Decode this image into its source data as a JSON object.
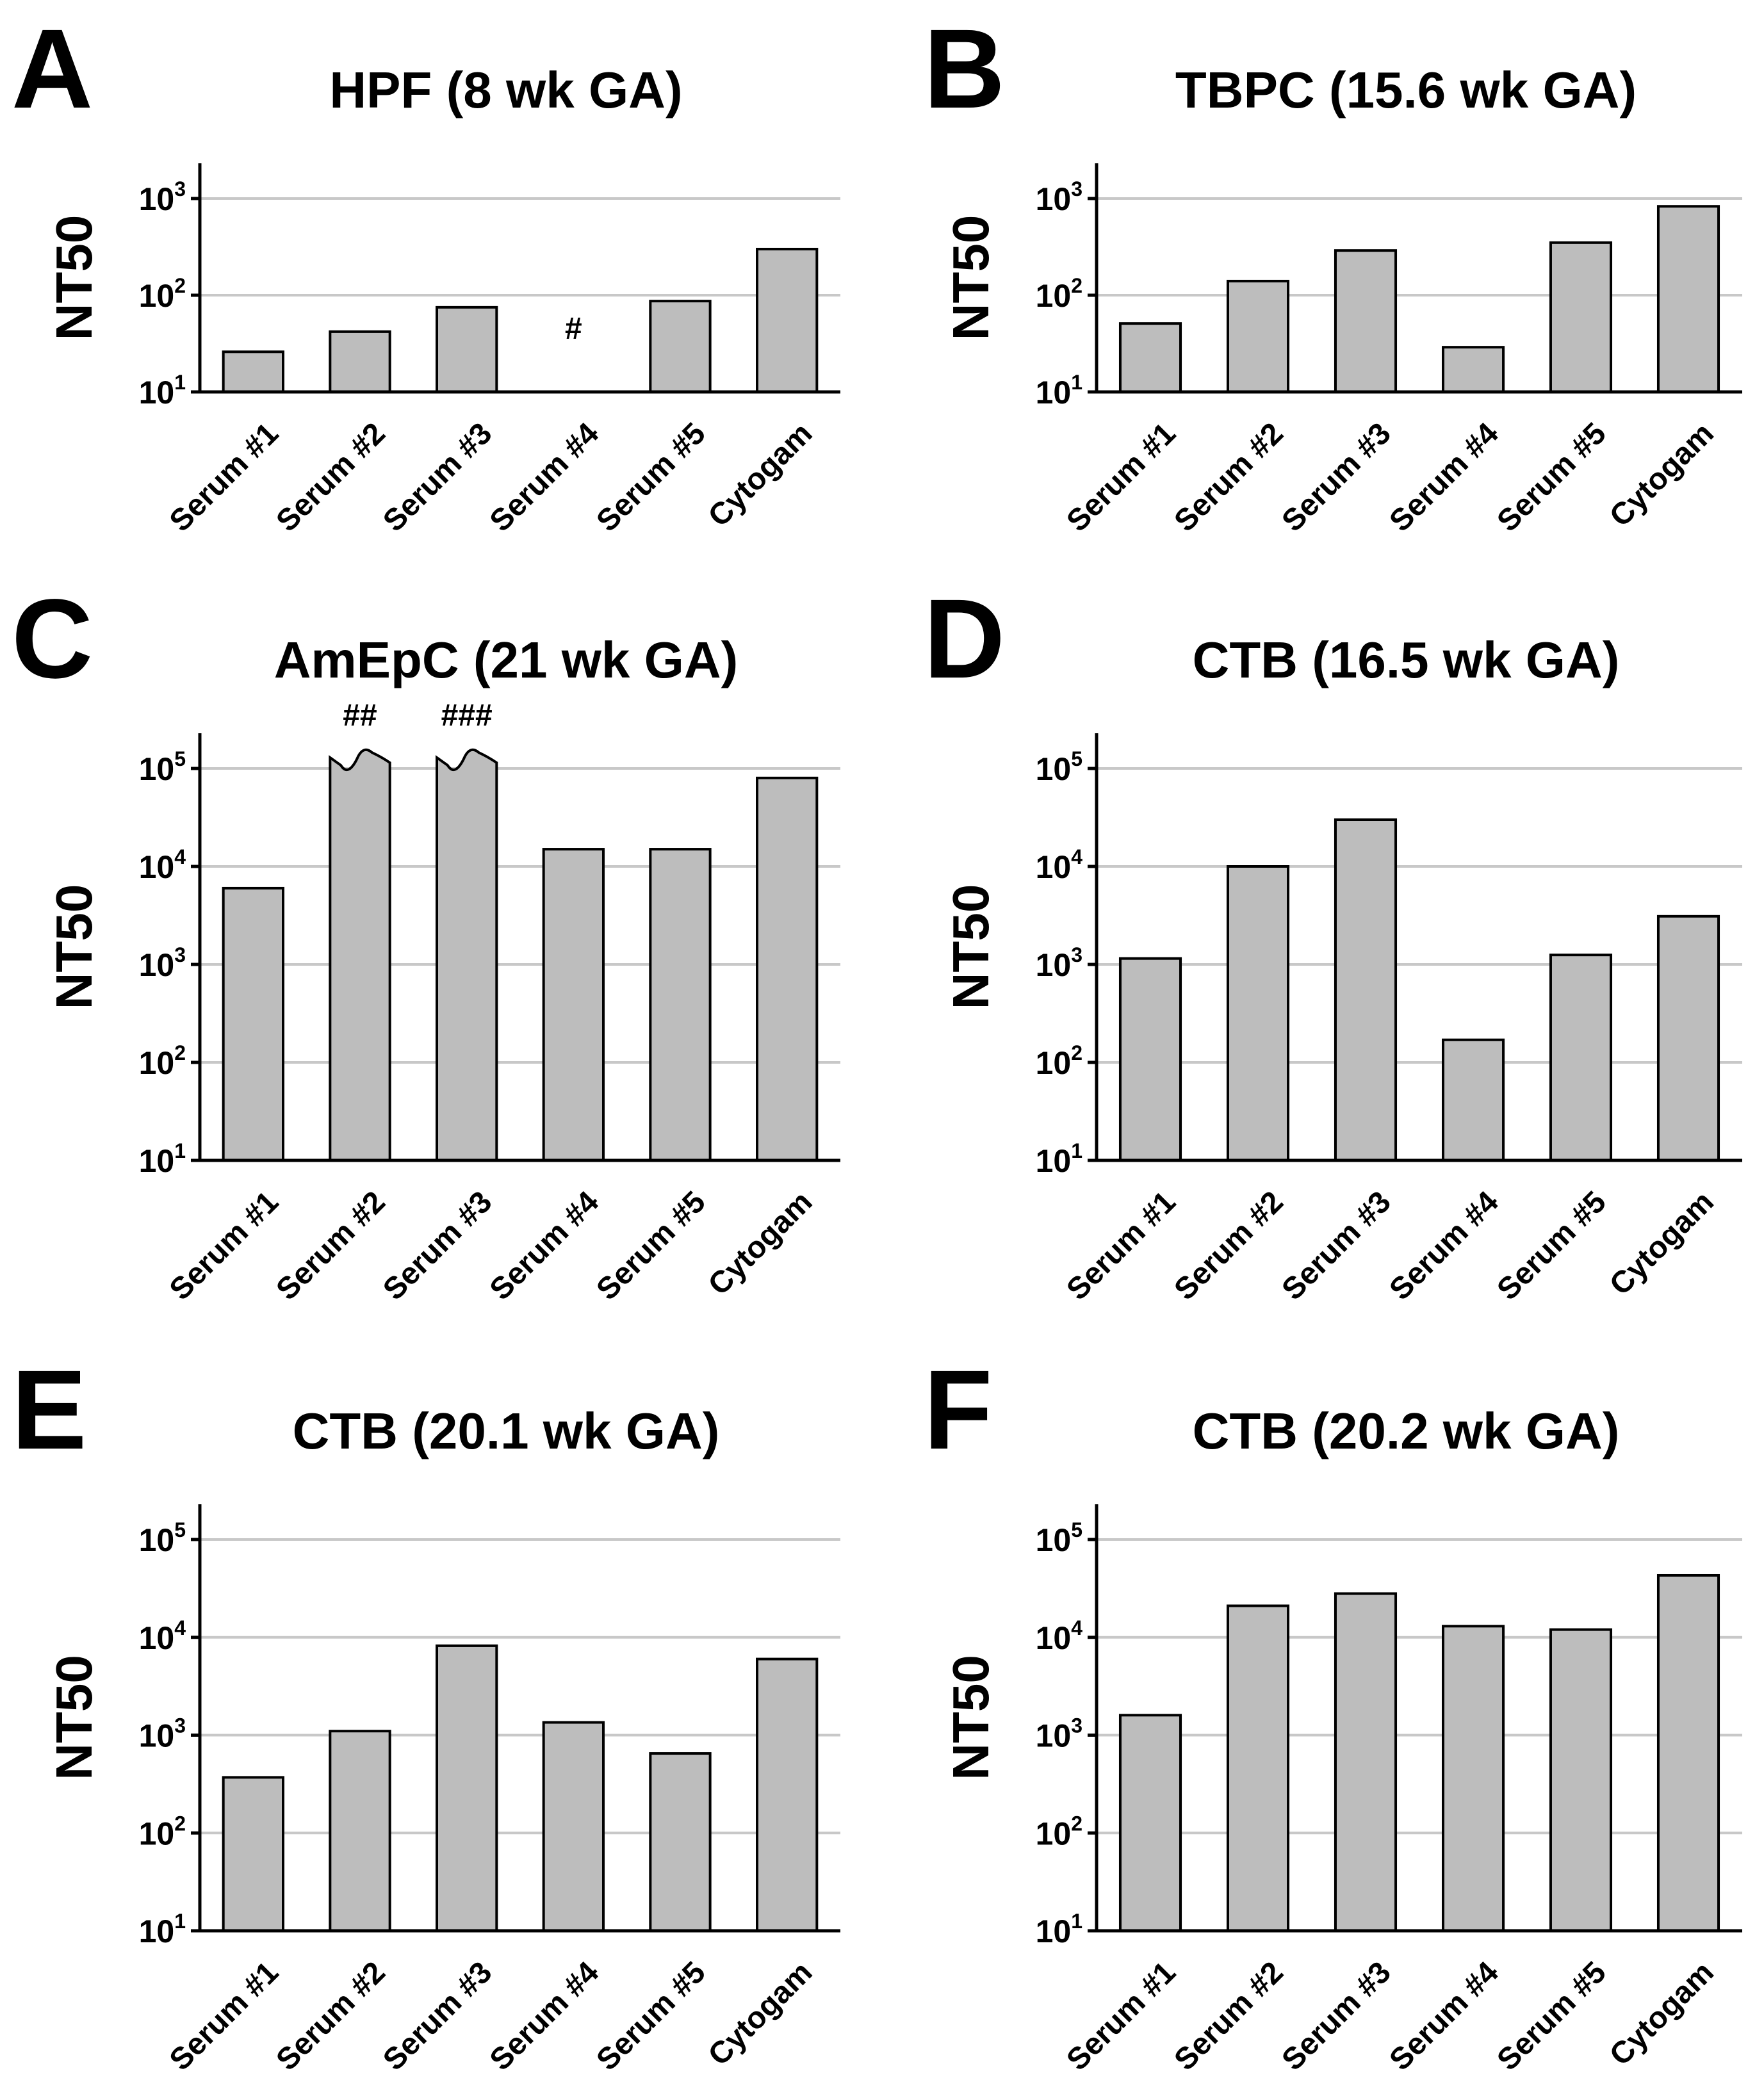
{
  "chart_data": [
    {
      "type": "bar",
      "letter": "A",
      "title": "HPF (8 wk GA)",
      "ylabel": "NT50",
      "yscale": "log",
      "ylim": [
        10,
        1000
      ],
      "yticks": [
        {
          "base": "10",
          "exp": "1"
        },
        {
          "base": "10",
          "exp": "2"
        },
        {
          "base": "10",
          "exp": "3"
        }
      ],
      "categories": [
        "Serum #1",
        "Serum #2",
        "Serum #3",
        "Serum #4",
        "Serum #5",
        "Cytogam"
      ],
      "values": [
        26,
        42,
        75,
        null,
        87,
        300
      ],
      "annotations": [
        {
          "index": 3,
          "text": "#"
        }
      ],
      "grid": true
    },
    {
      "type": "bar",
      "letter": "B",
      "title": "TBPC (15.6 wk GA)",
      "ylabel": "NT50",
      "yscale": "log",
      "ylim": [
        10,
        1000
      ],
      "yticks": [
        {
          "base": "10",
          "exp": "1"
        },
        {
          "base": "10",
          "exp": "2"
        },
        {
          "base": "10",
          "exp": "3"
        }
      ],
      "categories": [
        "Serum #1",
        "Serum #2",
        "Serum #3",
        "Serum #4",
        "Serum #5",
        "Cytogam"
      ],
      "values": [
        51,
        140,
        290,
        29,
        350,
        830
      ],
      "annotations": [],
      "grid": true
    },
    {
      "type": "bar",
      "letter": "C",
      "title": "AmEpC (21 wk GA)",
      "ylabel": "NT50",
      "yscale": "log",
      "ylim": [
        10,
        100000
      ],
      "yticks": [
        {
          "base": "10",
          "exp": "1"
        },
        {
          "base": "10",
          "exp": "2"
        },
        {
          "base": "10",
          "exp": "3"
        },
        {
          "base": "10",
          "exp": "4"
        },
        {
          "base": "10",
          "exp": "5"
        }
      ],
      "categories": [
        "Serum #1",
        "Serum #2",
        "Serum #3",
        "Serum #4",
        "Serum #5",
        "Cytogam"
      ],
      "values": [
        6000,
        150000,
        150000,
        15000,
        15000,
        80000
      ],
      "broken": [
        1,
        2
      ],
      "annotations": [
        {
          "index": 1,
          "text": "##"
        },
        {
          "index": 2,
          "text": "###"
        }
      ],
      "grid": true
    },
    {
      "type": "bar",
      "letter": "D",
      "title": "CTB (16.5 wk GA)",
      "ylabel": "NT50",
      "yscale": "log",
      "ylim": [
        10,
        100000
      ],
      "yticks": [
        {
          "base": "10",
          "exp": "1"
        },
        {
          "base": "10",
          "exp": "2"
        },
        {
          "base": "10",
          "exp": "3"
        },
        {
          "base": "10",
          "exp": "4"
        },
        {
          "base": "10",
          "exp": "5"
        }
      ],
      "categories": [
        "Serum #1",
        "Serum #2",
        "Serum #3",
        "Serum #4",
        "Serum #5",
        "Cytogam"
      ],
      "values": [
        1150,
        10000,
        30000,
        170,
        1250,
        3100
      ],
      "annotations": [],
      "grid": true
    },
    {
      "type": "bar",
      "letter": "E",
      "title": "CTB (20.1 wk GA)",
      "ylabel": "NT50",
      "yscale": "log",
      "ylim": [
        10,
        100000
      ],
      "yticks": [
        {
          "base": "10",
          "exp": "1"
        },
        {
          "base": "10",
          "exp": "2"
        },
        {
          "base": "10",
          "exp": "3"
        },
        {
          "base": "10",
          "exp": "4"
        },
        {
          "base": "10",
          "exp": "5"
        }
      ],
      "categories": [
        "Serum #1",
        "Serum #2",
        "Serum #3",
        "Serum #4",
        "Serum #5",
        "Cytogam"
      ],
      "values": [
        370,
        1100,
        8200,
        1350,
        650,
        6000
      ],
      "annotations": [],
      "grid": true
    },
    {
      "type": "bar",
      "letter": "F",
      "title": "CTB (20.2 wk GA)",
      "ylabel": "NT50",
      "yscale": "log",
      "ylim": [
        10,
        100000
      ],
      "yticks": [
        {
          "base": "10",
          "exp": "1"
        },
        {
          "base": "10",
          "exp": "2"
        },
        {
          "base": "10",
          "exp": "3"
        },
        {
          "base": "10",
          "exp": "4"
        },
        {
          "base": "10",
          "exp": "5"
        }
      ],
      "categories": [
        "Serum #1",
        "Serum #2",
        "Serum #3",
        "Serum #4",
        "Serum #5",
        "Cytogam"
      ],
      "values": [
        1600,
        21000,
        28000,
        13000,
        12000,
        43000
      ],
      "annotations": [],
      "grid": true
    }
  ]
}
